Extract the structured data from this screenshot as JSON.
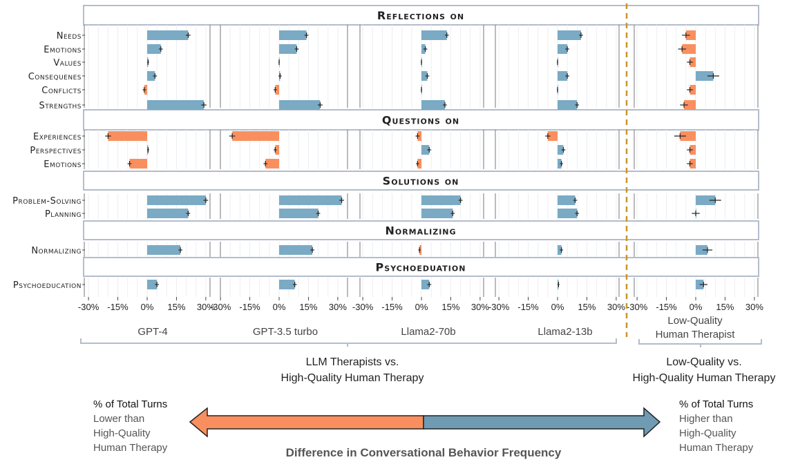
{
  "chart_data": {
    "type": "bar",
    "orientation": "horizontal",
    "colors": {
      "positive": "#7aaac4",
      "negative": "#f98f5e",
      "divider": "#c8952a",
      "frame": "#b3bccb"
    },
    "xticks": [
      "-30%",
      "-15%",
      "0%",
      "15%",
      "30%"
    ],
    "xlim": [
      -32,
      32
    ],
    "panels": [
      "GPT-4",
      "GPT-3.5 turbo",
      "Llama2-70b",
      "Llama2-13b",
      "Low-Quality Human Therapist"
    ],
    "sections": [
      {
        "title": "Reflections on",
        "rows": [
          {
            "label": "Needs",
            "values": [
              21,
              14,
              13,
              12,
              -5
            ],
            "errors": [
              1.2,
              1.0,
              1.0,
              1.0,
              2.0
            ]
          },
          {
            "label": "Emotions",
            "values": [
              7,
              9,
              2,
              5,
              -7
            ],
            "errors": [
              1.0,
              1.0,
              1.0,
              1.0,
              2.0
            ]
          },
          {
            "label": "Values",
            "values": [
              0.5,
              0,
              0,
              0,
              -3
            ],
            "errors": [
              0.5,
              0.3,
              0.3,
              0.3,
              1.5
            ]
          },
          {
            "label": "Consequenes",
            "values": [
              4,
              0.5,
              3,
              5,
              9
            ],
            "errors": [
              1.0,
              0.8,
              1.0,
              1.0,
              3.0
            ]
          },
          {
            "label": "Conflicts",
            "values": [
              -1.5,
              -2,
              0,
              0,
              -3
            ],
            "errors": [
              0.8,
              0.8,
              0.3,
              0.3,
              1.5
            ]
          },
          {
            "label": "Strengths",
            "values": [
              29,
              21,
              12,
              10,
              -6
            ],
            "errors": [
              1.3,
              1.2,
              1.0,
              1.0,
              2.0
            ]
          }
        ]
      },
      {
        "title": "Questions on",
        "rows": [
          {
            "label": "Experiences",
            "values": [
              -20,
              -24,
              -2,
              -5,
              -8
            ],
            "errors": [
              1.5,
              1.5,
              1.0,
              1.3,
              3.0
            ]
          },
          {
            "label": "Perspectives",
            "values": [
              0.5,
              -2,
              4,
              3,
              -3
            ],
            "errors": [
              0.5,
              0.8,
              1.0,
              1.0,
              1.5
            ]
          },
          {
            "label": "Emotions",
            "values": [
              -9,
              -7,
              -2,
              2,
              -3
            ],
            "errors": [
              1.0,
              1.0,
              0.8,
              0.8,
              1.5
            ]
          }
        ]
      },
      {
        "title": "Solutions on",
        "rows": [
          {
            "label": "Problem-Solving",
            "values": [
              30,
              32,
              20,
              9,
              10
            ],
            "errors": [
              1.2,
              1.2,
              1.0,
              1.0,
              3.0
            ]
          },
          {
            "label": "Planning",
            "values": [
              21,
              20,
              16,
              10,
              0
            ],
            "errors": [
              1.0,
              1.0,
              1.0,
              1.0,
              2.0
            ]
          }
        ]
      },
      {
        "title": "Normalizing",
        "rows": [
          {
            "label": "Normalizing",
            "values": [
              17,
              17,
              -1,
              2,
              6
            ],
            "errors": [
              1.0,
              1.0,
              0.6,
              0.8,
              2.5
            ]
          }
        ]
      },
      {
        "title": "Psychoeduation",
        "rows": [
          {
            "label": "Psychoeducation",
            "values": [
              5,
              8,
              4,
              0.5,
              4
            ],
            "errors": [
              1.0,
              1.0,
              1.0,
              0.5,
              2.0
            ]
          }
        ]
      }
    ]
  },
  "groups": {
    "left": [
      "LLM Therapists vs.",
      "High-Quality Human Therapy"
    ],
    "right": [
      "Low-Quality vs.",
      "High-Quality Human Therapy"
    ]
  },
  "legend": {
    "left": {
      "head": "% of Total Turns",
      "highlight": "Lower than",
      "line2": "High-Quality",
      "line3": "Human Therapy"
    },
    "right": {
      "head": "% of Total Turns",
      "highlight": "Higher than",
      "line2": "High-Quality",
      "line3": "Human Therapy"
    }
  },
  "footer": "Difference in Conversational Behavior Frequency"
}
